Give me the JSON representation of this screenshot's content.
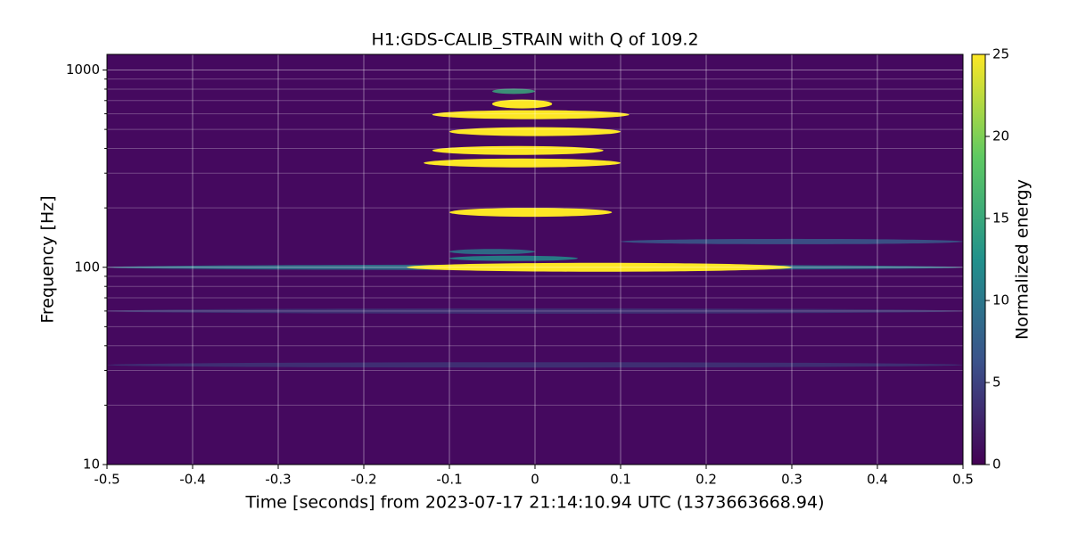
{
  "chart_data": {
    "type": "spectrogram",
    "title": "H1:GDS-CALIB_STRAIN with Q of 109.2",
    "x_label": "Time [seconds] from 2023-07-17 21:14:10.94 UTC (1373663668.94)",
    "y_label": "Frequency [Hz]",
    "xlim": [
      -0.5,
      0.5
    ],
    "xticks": [
      -0.5,
      -0.4,
      -0.3,
      -0.2,
      -0.1,
      0,
      0.1,
      0.2,
      0.3,
      0.4,
      0.5
    ],
    "ylim": [
      10,
      1200
    ],
    "yticks": [
      10,
      100,
      1000
    ],
    "yminorticks": [
      20,
      30,
      40,
      50,
      60,
      70,
      80,
      90,
      200,
      300,
      400,
      500,
      600,
      700,
      800,
      900
    ],
    "yscale": "log",
    "grid": true,
    "colormap": "viridis",
    "colorbar": {
      "label": "Normalized energy",
      "lim": [
        0,
        25
      ],
      "ticks": [
        0,
        5,
        10,
        15,
        20,
        25
      ]
    },
    "segments": [
      {
        "t": [
          -0.5,
          0.5
        ],
        "f": 100,
        "energy": 10
      },
      {
        "t": [
          -0.15,
          0.3
        ],
        "f": 100,
        "energy": 25
      },
      {
        "t": [
          -0.1,
          0.05
        ],
        "f": 111,
        "energy": 12
      },
      {
        "t": [
          -0.1,
          0.0
        ],
        "f": 120,
        "energy": 10
      },
      {
        "t": [
          0.1,
          0.5
        ],
        "f": 135,
        "energy": 7
      },
      {
        "t": [
          -0.5,
          0.5
        ],
        "f": 60,
        "energy": 4
      },
      {
        "t": [
          -0.5,
          0.5
        ],
        "f": 32,
        "energy": 4
      },
      {
        "t": [
          -0.1,
          0.09
        ],
        "f": 190,
        "energy": 25
      },
      {
        "t": [
          -0.13,
          0.1
        ],
        "f": 338,
        "energy": 25
      },
      {
        "t": [
          -0.12,
          0.08
        ],
        "f": 391,
        "energy": 25
      },
      {
        "t": [
          -0.1,
          0.1
        ],
        "f": 487,
        "energy": 25
      },
      {
        "t": [
          -0.12,
          0.11
        ],
        "f": 594,
        "energy": 25
      },
      {
        "t": [
          -0.05,
          0.02
        ],
        "f": 673,
        "energy": 25
      },
      {
        "t": [
          -0.05,
          0.0
        ],
        "f": 780,
        "energy": 15
      }
    ]
  }
}
